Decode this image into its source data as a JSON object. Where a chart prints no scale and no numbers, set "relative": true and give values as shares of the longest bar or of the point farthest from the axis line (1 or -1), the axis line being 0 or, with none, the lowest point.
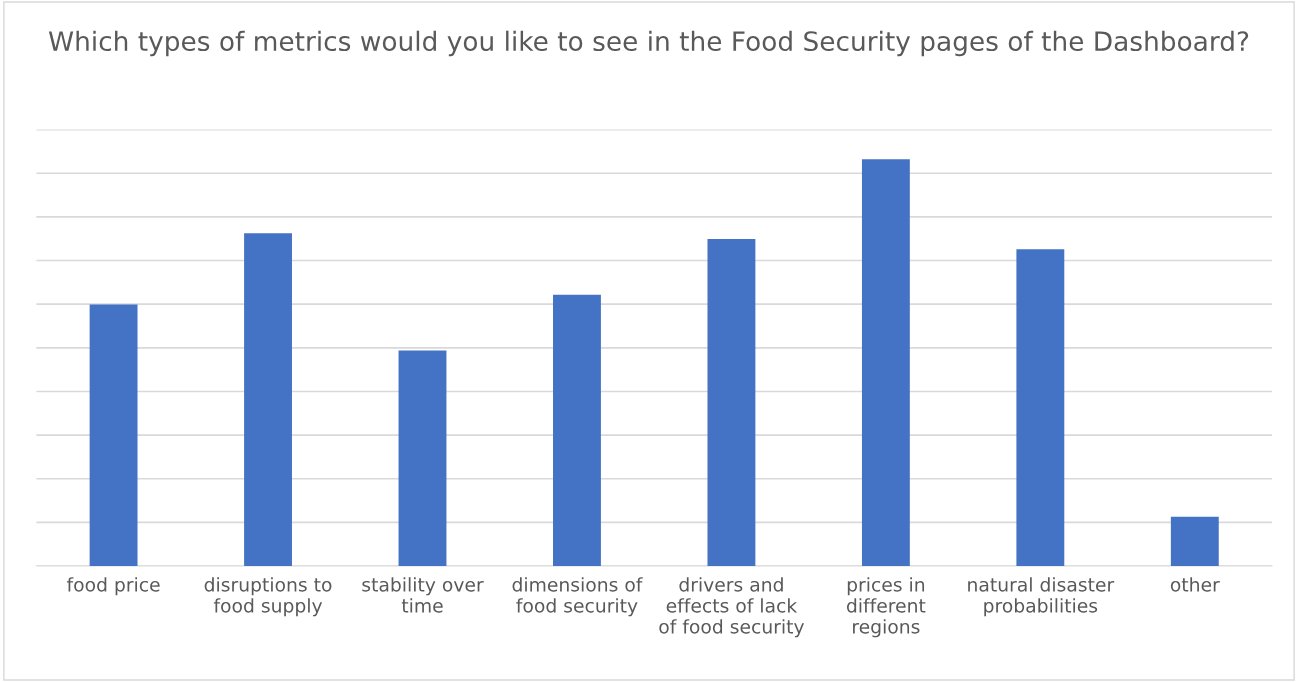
{
  "chart_data": {
    "type": "bar",
    "title": "Which types of metrics would you like to see in the Food Security pages of the Dashboard?",
    "categories": [
      "food price",
      "disruptions to\nfood supply",
      "stability over\ntime",
      "dimensions of\nfood security",
      "drivers and\neffects of lack\nof food security",
      "prices in\ndifferent\nregions",
      "natural disaster\nprobabilities",
      "other"
    ],
    "values": [
      0.643,
      0.818,
      0.53,
      0.667,
      0.804,
      1,
      0.779,
      0.121
    ],
    "color": "#4472c4",
    "relative": true,
    "grid": "y"
  }
}
